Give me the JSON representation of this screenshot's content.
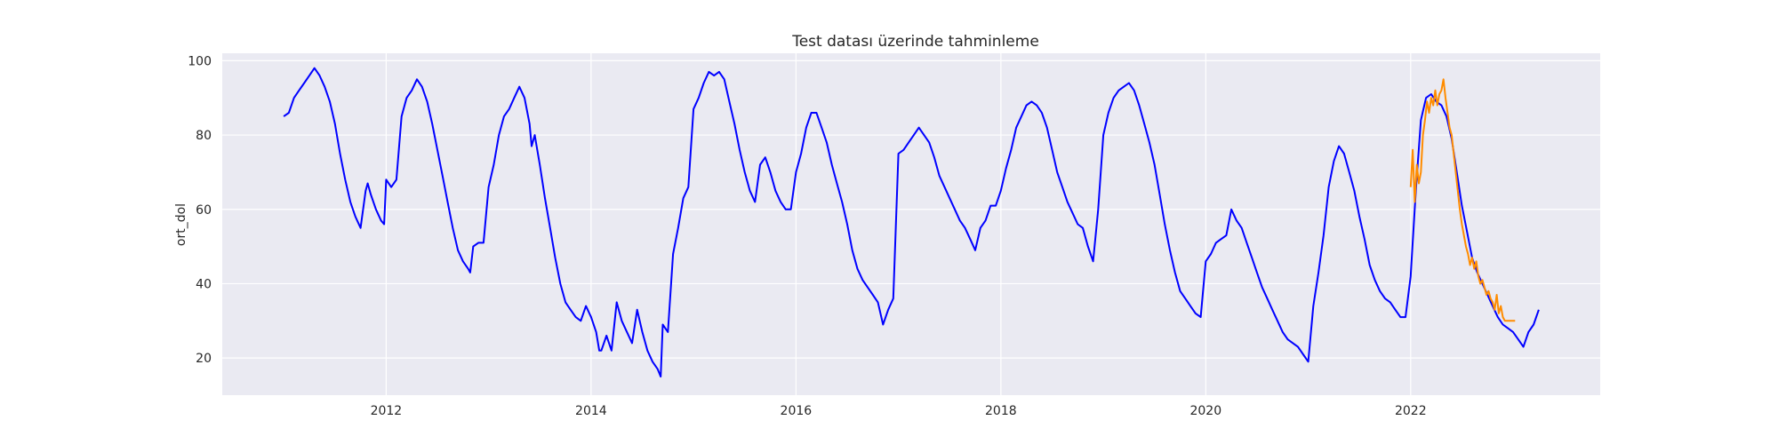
{
  "chart_data": {
    "type": "line",
    "title": "Test datası üzerinde tahminleme",
    "xlabel": "",
    "ylabel": "ort_dol",
    "xlim": [
      2010.4,
      2023.85
    ],
    "ylim": [
      10,
      102
    ],
    "xticks": [
      2012,
      2014,
      2016,
      2018,
      2020,
      2022
    ],
    "yticks": [
      20,
      40,
      60,
      80,
      100
    ],
    "grid": true,
    "background": "#eaeaf2",
    "series": [
      {
        "color": "#0000ff",
        "x": [
          2011.0,
          2011.05,
          2011.1,
          2011.15,
          2011.2,
          2011.25,
          2011.3,
          2011.35,
          2011.4,
          2011.45,
          2011.5,
          2011.55,
          2011.6,
          2011.65,
          2011.7,
          2011.75,
          2011.8,
          2011.82,
          2011.85,
          2011.9,
          2011.95,
          2011.98,
          2012.0,
          2012.05,
          2012.1,
          2012.15,
          2012.2,
          2012.25,
          2012.3,
          2012.35,
          2012.4,
          2012.45,
          2012.5,
          2012.55,
          2012.6,
          2012.65,
          2012.7,
          2012.75,
          2012.8,
          2012.82,
          2012.85,
          2012.9,
          2012.95,
          2013.0,
          2013.05,
          2013.1,
          2013.15,
          2013.2,
          2013.25,
          2013.3,
          2013.35,
          2013.4,
          2013.42,
          2013.45,
          2013.5,
          2013.55,
          2013.6,
          2013.65,
          2013.7,
          2013.75,
          2013.8,
          2013.85,
          2013.9,
          2013.95,
          2014.0,
          2014.05,
          2014.08,
          2014.1,
          2014.15,
          2014.2,
          2014.25,
          2014.3,
          2014.35,
          2014.4,
          2014.45,
          2014.5,
          2014.55,
          2014.6,
          2014.65,
          2014.68,
          2014.7,
          2014.75,
          2014.8,
          2014.85,
          2014.9,
          2014.95,
          2015.0,
          2015.05,
          2015.1,
          2015.15,
          2015.2,
          2015.25,
          2015.3,
          2015.35,
          2015.4,
          2015.45,
          2015.5,
          2015.55,
          2015.6,
          2015.65,
          2015.7,
          2015.75,
          2015.8,
          2015.85,
          2015.9,
          2015.95,
          2016.0,
          2016.05,
          2016.1,
          2016.15,
          2016.2,
          2016.25,
          2016.3,
          2016.35,
          2016.4,
          2016.45,
          2016.5,
          2016.55,
          2016.6,
          2016.65,
          2016.7,
          2016.75,
          2016.8,
          2016.85,
          2016.9,
          2016.95,
          2017.0,
          2017.05,
          2017.1,
          2017.15,
          2017.2,
          2017.25,
          2017.3,
          2017.35,
          2017.4,
          2017.45,
          2017.5,
          2017.55,
          2017.6,
          2017.65,
          2017.7,
          2017.75,
          2017.8,
          2017.85,
          2017.9,
          2017.95,
          2018.0,
          2018.05,
          2018.1,
          2018.15,
          2018.2,
          2018.25,
          2018.3,
          2018.35,
          2018.4,
          2018.45,
          2018.5,
          2018.55,
          2018.6,
          2018.65,
          2018.7,
          2018.75,
          2018.8,
          2018.85,
          2018.9,
          2018.95,
          2019.0,
          2019.05,
          2019.1,
          2019.15,
          2019.2,
          2019.25,
          2019.3,
          2019.35,
          2019.4,
          2019.45,
          2019.5,
          2019.55,
          2019.6,
          2019.65,
          2019.7,
          2019.75,
          2019.8,
          2019.85,
          2019.9,
          2019.95,
          2020.0,
          2020.05,
          2020.1,
          2020.15,
          2020.2,
          2020.25,
          2020.3,
          2020.35,
          2020.4,
          2020.45,
          2020.5,
          2020.55,
          2020.6,
          2020.65,
          2020.7,
          2020.75,
          2020.8,
          2020.85,
          2020.9,
          2020.95,
          2021.0,
          2021.05,
          2021.1,
          2021.15,
          2021.2,
          2021.25,
          2021.3,
          2021.35,
          2021.4,
          2021.45,
          2021.5,
          2021.55,
          2021.6,
          2021.65,
          2021.7,
          2021.75,
          2021.8,
          2021.85,
          2021.9,
          2021.95,
          2022.0,
          2022.05,
          2022.1,
          2022.15,
          2022.2,
          2022.25,
          2022.3,
          2022.35,
          2022.4,
          2022.45,
          2022.5,
          2022.55,
          2022.6,
          2022.65,
          2022.7,
          2022.75,
          2022.8,
          2022.85,
          2022.9,
          2022.95,
          2023.0,
          2023.05,
          2023.1,
          2023.15,
          2023.2,
          2023.25
        ],
        "y": [
          85,
          86,
          90,
          92,
          94,
          96,
          98,
          96,
          93,
          89,
          83,
          75,
          68,
          62,
          58,
          55,
          65,
          67,
          64,
          60,
          57,
          56,
          68,
          66,
          68,
          85,
          90,
          92,
          95,
          93,
          89,
          83,
          76,
          69,
          62,
          55,
          49,
          46,
          44,
          43,
          50,
          51,
          51,
          66,
          72,
          80,
          85,
          87,
          90,
          93,
          90,
          83,
          77,
          80,
          72,
          63,
          55,
          47,
          40,
          35,
          33,
          31,
          30,
          34,
          31,
          27,
          22,
          22,
          26,
          22,
          35,
          30,
          27,
          24,
          33,
          27,
          22,
          19,
          17,
          15,
          29,
          27,
          48,
          55,
          63,
          66,
          87,
          90,
          94,
          97,
          96,
          97,
          95,
          89,
          83,
          76,
          70,
          65,
          62,
          72,
          74,
          70,
          65,
          62,
          60,
          60,
          70,
          75,
          82,
          86,
          86,
          82,
          78,
          72,
          67,
          62,
          56,
          49,
          44,
          41,
          39,
          37,
          35,
          29,
          33,
          36,
          75,
          76,
          78,
          80,
          82,
          80,
          78,
          74,
          69,
          66,
          63,
          60,
          57,
          55,
          52,
          49,
          55,
          57,
          61,
          61,
          65,
          71,
          76,
          82,
          85,
          88,
          89,
          88,
          86,
          82,
          76,
          70,
          66,
          62,
          59,
          56,
          55,
          50,
          46,
          60,
          80,
          86,
          90,
          92,
          93,
          94,
          92,
          88,
          83,
          78,
          72,
          64,
          56,
          49,
          43,
          38,
          36,
          34,
          32,
          31,
          46,
          48,
          51,
          52,
          53,
          60,
          57,
          55,
          51,
          47,
          43,
          39,
          36,
          33,
          30,
          27,
          25,
          24,
          23,
          21,
          19,
          34,
          43,
          53,
          66,
          73,
          77,
          75,
          70,
          65,
          58,
          52,
          45,
          41,
          38,
          36,
          35,
          33,
          31,
          31,
          42,
          65,
          84,
          90,
          91,
          89,
          88,
          85,
          79,
          70,
          61,
          54,
          47,
          43,
          40,
          37,
          34,
          31,
          29,
          28,
          27,
          25,
          23,
          27,
          29,
          33
        ]
      },
      {
        "color": "#ff8c00",
        "x": [
          2022.0,
          2022.02,
          2022.04,
          2022.06,
          2022.08,
          2022.1,
          2022.12,
          2022.14,
          2022.16,
          2022.18,
          2022.2,
          2022.22,
          2022.24,
          2022.26,
          2022.28,
          2022.3,
          2022.32,
          2022.34,
          2022.36,
          2022.38,
          2022.4,
          2022.42,
          2022.44,
          2022.46,
          2022.48,
          2022.5,
          2022.52,
          2022.54,
          2022.56,
          2022.58,
          2022.6,
          2022.62,
          2022.64,
          2022.66,
          2022.68,
          2022.7,
          2022.72,
          2022.74,
          2022.76,
          2022.78,
          2022.8,
          2022.82,
          2022.84,
          2022.86,
          2022.88,
          2022.9,
          2022.92,
          2022.94,
          2022.96,
          2022.98,
          2023.0,
          2023.02
        ],
        "y": [
          66,
          76,
          62,
          72,
          67,
          70,
          80,
          84,
          89,
          86,
          90,
          88,
          92,
          88,
          91,
          92,
          95,
          90,
          86,
          82,
          80,
          75,
          70,
          65,
          60,
          56,
          53,
          50,
          48,
          45,
          47,
          44,
          46,
          42,
          40,
          41,
          39,
          37,
          38,
          36,
          35,
          33,
          37,
          32,
          34,
          31,
          30,
          30,
          30,
          30,
          30,
          30
        ]
      }
    ]
  }
}
